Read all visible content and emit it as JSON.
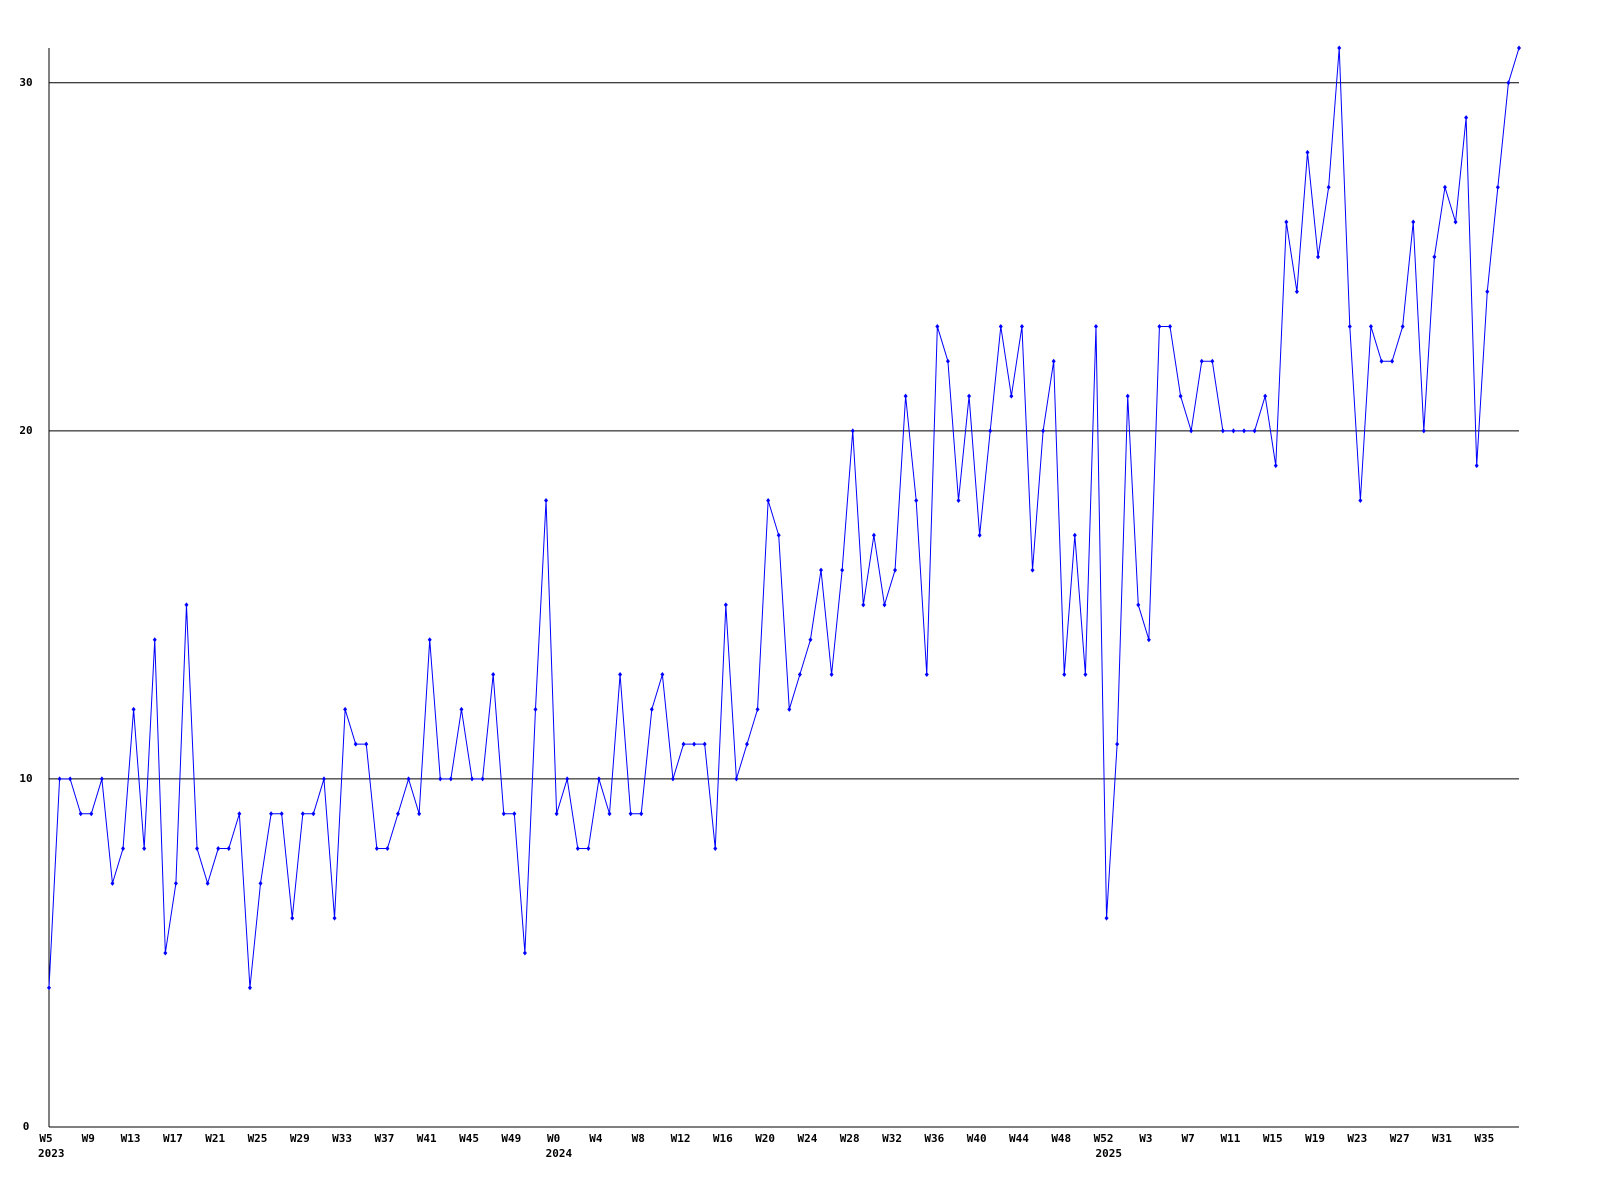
{
  "chart_data": {
    "type": "line",
    "categories": [
      "W5",
      null,
      null,
      null,
      "W9",
      null,
      null,
      null,
      "W13",
      null,
      null,
      null,
      "W17",
      null,
      null,
      null,
      "W21",
      null,
      null,
      null,
      "W25",
      null,
      null,
      null,
      "W29",
      null,
      null,
      null,
      "W33",
      null,
      null,
      null,
      "W37",
      null,
      null,
      null,
      "W41",
      null,
      null,
      null,
      "W45",
      null,
      null,
      null,
      "W49",
      null,
      null,
      null,
      "W0",
      null,
      null,
      null,
      "W4",
      null,
      null,
      null,
      "W8",
      null,
      null,
      null,
      "W12",
      null,
      null,
      null,
      "W16",
      null,
      null,
      null,
      "W20",
      null,
      null,
      null,
      "W24",
      null,
      null,
      null,
      "W28",
      null,
      null,
      null,
      "W32",
      null,
      null,
      null,
      "W36",
      null,
      null,
      null,
      "W40",
      null,
      null,
      null,
      "W44",
      null,
      null,
      null,
      "W48",
      null,
      null,
      null,
      "W52",
      null,
      null,
      null,
      "W3",
      null,
      null,
      null,
      "W7",
      null,
      null,
      null,
      "W11",
      null,
      null,
      null,
      "W15",
      null,
      null,
      null,
      "W19",
      null,
      null,
      null,
      "W23",
      null,
      null,
      null,
      "W27",
      null,
      null,
      null,
      "W31",
      null,
      null,
      null,
      "W35",
      null,
      null,
      null
    ],
    "years": [
      "2023",
      null,
      null,
      null,
      null,
      null,
      null,
      null,
      null,
      null,
      null,
      null,
      null,
      null,
      null,
      null,
      null,
      null,
      null,
      null,
      null,
      null,
      null,
      null,
      null,
      null,
      null,
      null,
      null,
      null,
      null,
      null,
      null,
      null,
      null,
      null,
      null,
      null,
      null,
      null,
      null,
      null,
      null,
      null,
      null,
      null,
      null,
      null,
      "2024",
      null,
      null,
      null,
      null,
      null,
      null,
      null,
      null,
      null,
      null,
      null,
      null,
      null,
      null,
      null,
      null,
      null,
      null,
      null,
      null,
      null,
      null,
      null,
      null,
      null,
      null,
      null,
      null,
      null,
      null,
      null,
      null,
      null,
      null,
      null,
      null,
      null,
      null,
      null,
      null,
      null,
      null,
      null,
      null,
      null,
      null,
      null,
      null,
      null,
      null,
      null,
      "2025",
      null,
      null,
      null,
      null,
      null,
      null,
      null,
      null,
      null,
      null,
      null,
      null,
      null,
      null,
      null,
      null,
      null,
      null,
      null,
      null,
      null,
      null,
      null,
      null,
      null,
      null,
      null,
      null,
      null,
      null,
      null,
      null,
      null,
      null,
      null,
      null,
      null,
      null
    ],
    "values": [
      4,
      10,
      10,
      9,
      9,
      10,
      7,
      8,
      12,
      8,
      14,
      5,
      7,
      15,
      8,
      7,
      8,
      8,
      9,
      4,
      7,
      9,
      9,
      6,
      9,
      9,
      10,
      6,
      12,
      11,
      11,
      8,
      8,
      9,
      10,
      9,
      14,
      10,
      10,
      12,
      10,
      10,
      13,
      9,
      9,
      5,
      12,
      18,
      9,
      10,
      8,
      8,
      10,
      9,
      13,
      9,
      9,
      12,
      13,
      10,
      11,
      11,
      11,
      8,
      15,
      10,
      11,
      12,
      18,
      17,
      12,
      13,
      14,
      16,
      13,
      16,
      20,
      15,
      17,
      15,
      16,
      21,
      18,
      13,
      23,
      22,
      18,
      21,
      17,
      20,
      23,
      21,
      23,
      16,
      20,
      22,
      13,
      17,
      13,
      23,
      6,
      11,
      21,
      15,
      14,
      23,
      23,
      21,
      20,
      22,
      22,
      20,
      20,
      20,
      20,
      21,
      19,
      26,
      24,
      28,
      25,
      27,
      31,
      23,
      18,
      23,
      22,
      22,
      23,
      26,
      20,
      25,
      27,
      26,
      29,
      19,
      24,
      27,
      30,
      31
    ],
    "color": "#0000ff",
    "ylim": [
      0,
      31
    ],
    "yticks": [
      0,
      10,
      20,
      30
    ],
    "grid": true
  }
}
